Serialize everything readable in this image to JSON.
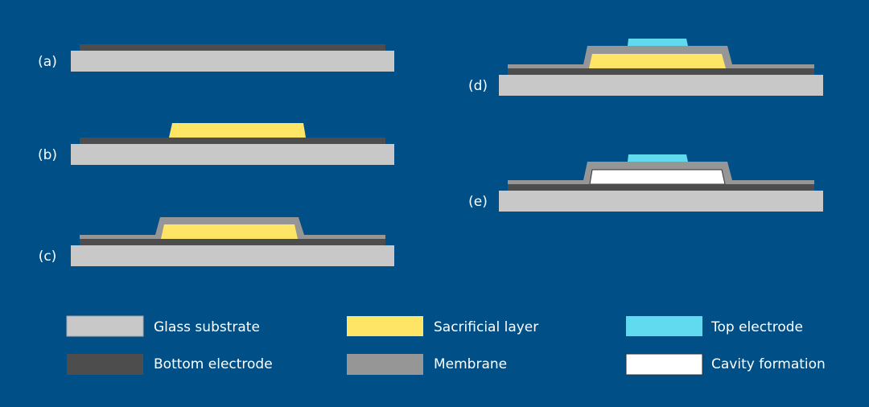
{
  "colors": {
    "background": "#005087",
    "glass_substrate": "#c8c8c8",
    "bottom_electrode": "#4d4d4d",
    "sacrificial_layer": "#ffe566",
    "membrane": "#969696",
    "top_electrode": "#61daf0",
    "cavity": "#ffffff"
  },
  "steps": [
    {
      "label": "(a)"
    },
    {
      "label": "(b)"
    },
    {
      "label": "(c)"
    },
    {
      "label": "(d)"
    },
    {
      "label": "(e)"
    }
  ],
  "legend": [
    {
      "label": "Glass substrate",
      "color": "#c8c8c8"
    },
    {
      "label": "Sacrificial layer",
      "color": "#ffe566"
    },
    {
      "label": "Top electrode",
      "color": "#61daf0"
    },
    {
      "label": "Bottom electrode",
      "color": "#4d4d4d"
    },
    {
      "label": "Membrane",
      "color": "#969696"
    },
    {
      "label": "Cavity formation",
      "color": "#ffffff"
    }
  ]
}
